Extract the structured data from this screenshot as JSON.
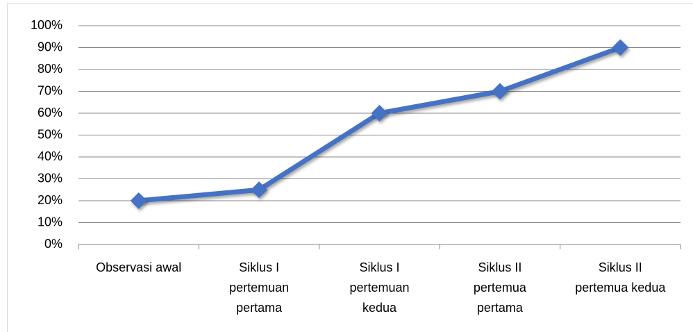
{
  "chart_data": {
    "type": "line",
    "categories": [
      "Observasi awal",
      "Siklus I pertemuan pertama",
      "Siklus I pertemuan kedua",
      "Siklus II pertemua pertama",
      "Siklus II pertemua kedua"
    ],
    "series": [
      {
        "color": "#4472c4",
        "values": [
          20,
          25,
          60,
          70,
          90
        ]
      }
    ],
    "ylim": [
      0,
      100
    ],
    "yticks": [
      {
        "value": 0,
        "label": "0%"
      },
      {
        "value": 10,
        "label": "10%"
      },
      {
        "value": 20,
        "label": "20%"
      },
      {
        "value": 30,
        "label": "30%"
      },
      {
        "value": 40,
        "label": "40%"
      },
      {
        "value": 50,
        "label": "50%"
      },
      {
        "value": 60,
        "label": "60%"
      },
      {
        "value": 70,
        "label": "70%"
      },
      {
        "value": 80,
        "label": "80%"
      },
      {
        "value": 90,
        "label": "90%"
      },
      {
        "value": 100,
        "label": "100%"
      }
    ],
    "grid": true
  }
}
